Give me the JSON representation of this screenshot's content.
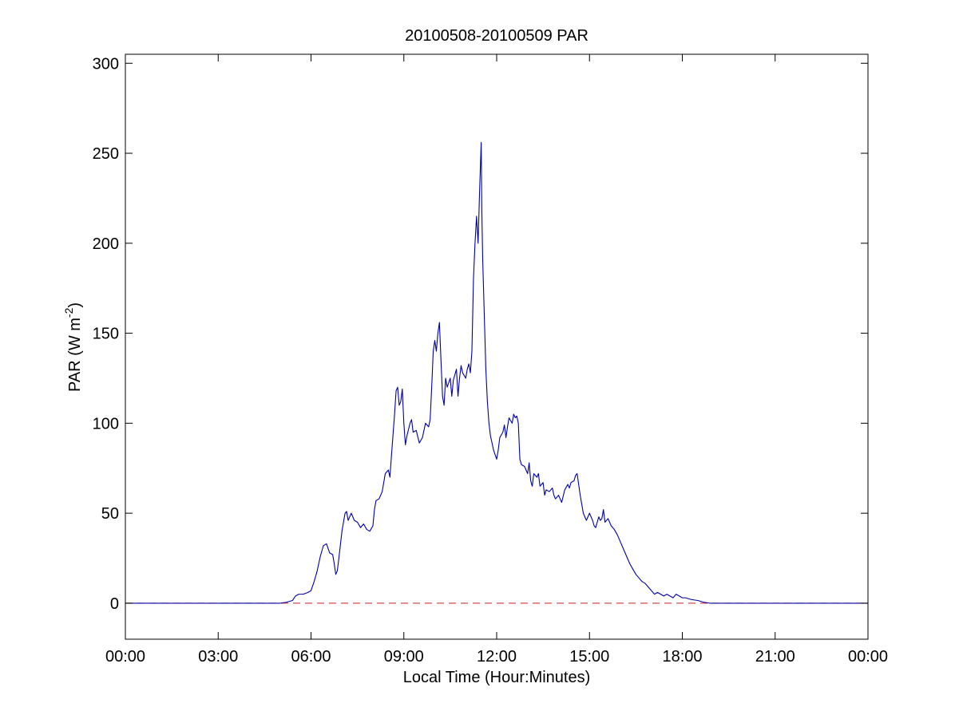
{
  "chart_data": {
    "type": "line",
    "title": "20100508-20100509 PAR",
    "xlabel": "Local Time (Hour:Minutes)",
    "ylabel": {
      "main": "PAR (W m",
      "superscript": "-2",
      "close": ")"
    },
    "xlim": [
      0,
      24
    ],
    "ylim": [
      -20,
      305
    ],
    "x_ticks": [
      {
        "value": 0,
        "label": "00:00"
      },
      {
        "value": 3,
        "label": "03:00"
      },
      {
        "value": 6,
        "label": "06:00"
      },
      {
        "value": 9,
        "label": "09:00"
      },
      {
        "value": 12,
        "label": "12:00"
      },
      {
        "value": 15,
        "label": "15:00"
      },
      {
        "value": 18,
        "label": "18:00"
      },
      {
        "value": 21,
        "label": "21:00"
      },
      {
        "value": 24,
        "label": "00:00"
      }
    ],
    "y_ticks": [
      {
        "value": 0,
        "label": "0"
      },
      {
        "value": 50,
        "label": "50"
      },
      {
        "value": 100,
        "label": "100"
      },
      {
        "value": 150,
        "label": "150"
      },
      {
        "value": 200,
        "label": "200"
      },
      {
        "value": 250,
        "label": "250"
      },
      {
        "value": 300,
        "label": "300"
      }
    ],
    "grid": false,
    "reference_line": {
      "y": 0,
      "color": "#cc2222",
      "style": "dashed"
    },
    "series": [
      {
        "color": "#0000aa",
        "points": [
          [
            0.0,
            0
          ],
          [
            1.0,
            0
          ],
          [
            2.0,
            0
          ],
          [
            3.0,
            0
          ],
          [
            4.0,
            0
          ],
          [
            5.0,
            0
          ],
          [
            5.2,
            0.5
          ],
          [
            5.4,
            1.5
          ],
          [
            5.5,
            4
          ],
          [
            5.6,
            5
          ],
          [
            5.75,
            5
          ],
          [
            5.9,
            6
          ],
          [
            6.0,
            7
          ],
          [
            6.1,
            12
          ],
          [
            6.2,
            18
          ],
          [
            6.3,
            26
          ],
          [
            6.4,
            32
          ],
          [
            6.5,
            33
          ],
          [
            6.6,
            28
          ],
          [
            6.7,
            27
          ],
          [
            6.75,
            22
          ],
          [
            6.8,
            16
          ],
          [
            6.85,
            18
          ],
          [
            6.9,
            25
          ],
          [
            7.0,
            40
          ],
          [
            7.1,
            50
          ],
          [
            7.15,
            51
          ],
          [
            7.2,
            46
          ],
          [
            7.3,
            50
          ],
          [
            7.4,
            46
          ],
          [
            7.5,
            45
          ],
          [
            7.6,
            42
          ],
          [
            7.7,
            44
          ],
          [
            7.8,
            41
          ],
          [
            7.9,
            40
          ],
          [
            8.0,
            43
          ],
          [
            8.05,
            52
          ],
          [
            8.1,
            57
          ],
          [
            8.2,
            58
          ],
          [
            8.3,
            62
          ],
          [
            8.4,
            72
          ],
          [
            8.5,
            74
          ],
          [
            8.55,
            70
          ],
          [
            8.6,
            82
          ],
          [
            8.7,
            105
          ],
          [
            8.75,
            118
          ],
          [
            8.8,
            120
          ],
          [
            8.85,
            110
          ],
          [
            8.9,
            112
          ],
          [
            8.95,
            119
          ],
          [
            9.0,
            100
          ],
          [
            9.05,
            88
          ],
          [
            9.1,
            93
          ],
          [
            9.2,
            100
          ],
          [
            9.25,
            102
          ],
          [
            9.3,
            95
          ],
          [
            9.4,
            96
          ],
          [
            9.5,
            89
          ],
          [
            9.6,
            92
          ],
          [
            9.7,
            100
          ],
          [
            9.8,
            98
          ],
          [
            9.85,
            102
          ],
          [
            9.9,
            120
          ],
          [
            9.95,
            140
          ],
          [
            10.0,
            146
          ],
          [
            10.05,
            140
          ],
          [
            10.1,
            150
          ],
          [
            10.15,
            156
          ],
          [
            10.2,
            135
          ],
          [
            10.25,
            115
          ],
          [
            10.3,
            110
          ],
          [
            10.35,
            125
          ],
          [
            10.4,
            120
          ],
          [
            10.5,
            125
          ],
          [
            10.55,
            115
          ],
          [
            10.6,
            124
          ],
          [
            10.7,
            130
          ],
          [
            10.75,
            115
          ],
          [
            10.8,
            125
          ],
          [
            10.85,
            132
          ],
          [
            10.9,
            128
          ],
          [
            11.0,
            125
          ],
          [
            11.05,
            130
          ],
          [
            11.1,
            133
          ],
          [
            11.15,
            128
          ],
          [
            11.2,
            140
          ],
          [
            11.25,
            180
          ],
          [
            11.3,
            200
          ],
          [
            11.35,
            215
          ],
          [
            11.4,
            200
          ],
          [
            11.45,
            230
          ],
          [
            11.5,
            256
          ],
          [
            11.52,
            218
          ],
          [
            11.55,
            190
          ],
          [
            11.6,
            160
          ],
          [
            11.65,
            130
          ],
          [
            11.7,
            112
          ],
          [
            11.75,
            100
          ],
          [
            11.8,
            93
          ],
          [
            11.9,
            85
          ],
          [
            12.0,
            80
          ],
          [
            12.05,
            85
          ],
          [
            12.1,
            92
          ],
          [
            12.2,
            95
          ],
          [
            12.25,
            99
          ],
          [
            12.3,
            92
          ],
          [
            12.35,
            98
          ],
          [
            12.4,
            103
          ],
          [
            12.5,
            100
          ],
          [
            12.55,
            105
          ],
          [
            12.6,
            103
          ],
          [
            12.65,
            104
          ],
          [
            12.7,
            100
          ],
          [
            12.75,
            80
          ],
          [
            12.8,
            77
          ],
          [
            12.9,
            76
          ],
          [
            13.0,
            72
          ],
          [
            13.05,
            78
          ],
          [
            13.1,
            68
          ],
          [
            13.15,
            65
          ],
          [
            13.2,
            72
          ],
          [
            13.3,
            70
          ],
          [
            13.35,
            72
          ],
          [
            13.4,
            65
          ],
          [
            13.5,
            67
          ],
          [
            13.55,
            60
          ],
          [
            13.6,
            63
          ],
          [
            13.7,
            62
          ],
          [
            13.8,
            64
          ],
          [
            13.85,
            60
          ],
          [
            13.9,
            58
          ],
          [
            14.0,
            60
          ],
          [
            14.05,
            58
          ],
          [
            14.1,
            56
          ],
          [
            14.2,
            63
          ],
          [
            14.3,
            66
          ],
          [
            14.35,
            64
          ],
          [
            14.4,
            67
          ],
          [
            14.5,
            68
          ],
          [
            14.55,
            71
          ],
          [
            14.6,
            72
          ],
          [
            14.65,
            66
          ],
          [
            14.7,
            60
          ],
          [
            14.75,
            55
          ],
          [
            14.8,
            50
          ],
          [
            14.85,
            48
          ],
          [
            14.9,
            46
          ],
          [
            15.0,
            50
          ],
          [
            15.1,
            46
          ],
          [
            15.15,
            43
          ],
          [
            15.2,
            42
          ],
          [
            15.3,
            48
          ],
          [
            15.35,
            46
          ],
          [
            15.4,
            47
          ],
          [
            15.45,
            52
          ],
          [
            15.5,
            45
          ],
          [
            15.6,
            47
          ],
          [
            15.7,
            43
          ],
          [
            15.8,
            41
          ],
          [
            15.9,
            38
          ],
          [
            16.0,
            34
          ],
          [
            16.1,
            30
          ],
          [
            16.2,
            26
          ],
          [
            16.3,
            22
          ],
          [
            16.4,
            19
          ],
          [
            16.5,
            16
          ],
          [
            16.6,
            14
          ],
          [
            16.7,
            12
          ],
          [
            16.8,
            11
          ],
          [
            16.9,
            9
          ],
          [
            17.0,
            7
          ],
          [
            17.1,
            5
          ],
          [
            17.2,
            6
          ],
          [
            17.3,
            5
          ],
          [
            17.4,
            4
          ],
          [
            17.5,
            5
          ],
          [
            17.6,
            4
          ],
          [
            17.7,
            3
          ],
          [
            17.8,
            5
          ],
          [
            17.9,
            4
          ],
          [
            18.0,
            3
          ],
          [
            18.1,
            3
          ],
          [
            18.3,
            2
          ],
          [
            18.5,
            1.5
          ],
          [
            18.7,
            0.5
          ],
          [
            18.9,
            0
          ],
          [
            19.5,
            0
          ],
          [
            20.0,
            0
          ],
          [
            21.0,
            0
          ],
          [
            22.0,
            0
          ],
          [
            23.0,
            0
          ],
          [
            24.0,
            0
          ]
        ]
      }
    ]
  }
}
